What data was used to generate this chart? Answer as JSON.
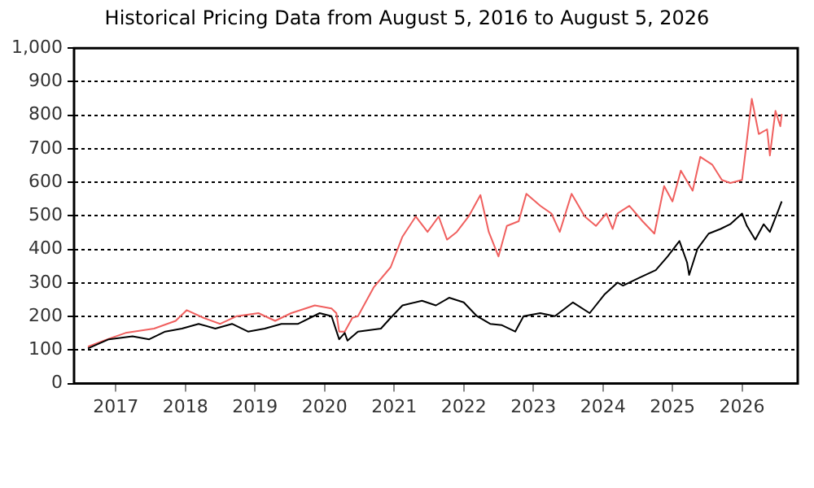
{
  "chart_data": {
    "type": "line",
    "title": "Historical Pricing Data from August 5, 2016 to August 5, 2026",
    "xlim": [
      2016.4,
      2026.8
    ],
    "xticks": [
      2017,
      2018,
      2019,
      2020,
      2021,
      2022,
      2023,
      2024,
      2025,
      2026
    ],
    "ylim": [
      0,
      1000
    ],
    "yticks": [
      0,
      100,
      200,
      300,
      400,
      500,
      600,
      700,
      800,
      900,
      {
        "value": 1000,
        "label": "1,000"
      }
    ],
    "grid": "y",
    "marker": "none",
    "line_style": "solid",
    "series": [
      {
        "color": "#000000",
        "x": [
          2016.6,
          2016.9,
          2017.24,
          2017.48,
          2017.71,
          2017.95,
          2018.19,
          2018.43,
          2018.67,
          2018.9,
          2019.14,
          2019.38,
          2019.62,
          2019.93,
          2020.1,
          2020.21,
          2020.29,
          2020.33,
          2020.48,
          2020.81,
          2020.95,
          2021.12,
          2021.4,
          2021.6,
          2021.79,
          2022.0,
          2022.19,
          2022.38,
          2022.55,
          2022.74,
          2022.86,
          2023.1,
          2023.31,
          2023.57,
          2023.81,
          2024.02,
          2024.21,
          2024.29,
          2024.52,
          2024.76,
          2024.93,
          2025.1,
          2025.21,
          2025.24,
          2025.36,
          2025.52,
          2025.69,
          2025.83,
          2026.0,
          2026.07,
          2026.19,
          2026.31,
          2026.4,
          2026.52,
          2026.57
        ],
        "values": [
          105,
          132,
          141,
          132,
          155,
          164,
          178,
          164,
          178,
          155,
          164,
          178,
          178,
          210,
          201,
          132,
          151,
          128,
          155,
          164,
          196,
          233,
          247,
          233,
          256,
          242,
          201,
          178,
          174,
          155,
          201,
          210,
          201,
          242,
          210,
          265,
          301,
          292,
          315,
          338,
          379,
          425,
          361,
          324,
          402,
          447,
          461,
          475,
          507,
          470,
          429,
          475,
          452,
          516,
          543
        ]
      },
      {
        "color": "#f0605f",
        "x": [
          2016.6,
          2016.88,
          2017.14,
          2017.55,
          2017.86,
          2018.02,
          2018.26,
          2018.5,
          2018.74,
          2019.05,
          2019.29,
          2019.52,
          2019.86,
          2020.1,
          2020.17,
          2020.21,
          2020.29,
          2020.4,
          2020.48,
          2020.71,
          2020.95,
          2021.12,
          2021.31,
          2021.48,
          2021.64,
          2021.76,
          2021.9,
          2022.07,
          2022.24,
          2022.36,
          2022.5,
          2022.62,
          2022.79,
          2022.9,
          2023.1,
          2023.26,
          2023.38,
          2023.55,
          2023.74,
          2023.9,
          2024.05,
          2024.14,
          2024.21,
          2024.38,
          2024.57,
          2024.74,
          2024.88,
          2025.0,
          2025.12,
          2025.29,
          2025.4,
          2025.57,
          2025.71,
          2025.83,
          2026.0,
          2026.07,
          2026.14,
          2026.24,
          2026.36,
          2026.4,
          2026.48,
          2026.55,
          2026.57
        ],
        "values": [
          110,
          132,
          151,
          164,
          187,
          219,
          196,
          178,
          201,
          210,
          187,
          210,
          233,
          224,
          210,
          155,
          155,
          196,
          201,
          288,
          347,
          438,
          498,
          452,
          498,
          429,
          452,
          498,
          562,
          452,
          379,
          470,
          484,
          566,
          530,
          507,
          452,
          566,
          498,
          470,
          507,
          461,
          507,
          530,
          484,
          447,
          589,
          543,
          635,
          575,
          676,
          653,
          607,
          598,
          607,
          726,
          849,
          744,
          758,
          680,
          813,
          767,
          804
        ]
      }
    ]
  }
}
